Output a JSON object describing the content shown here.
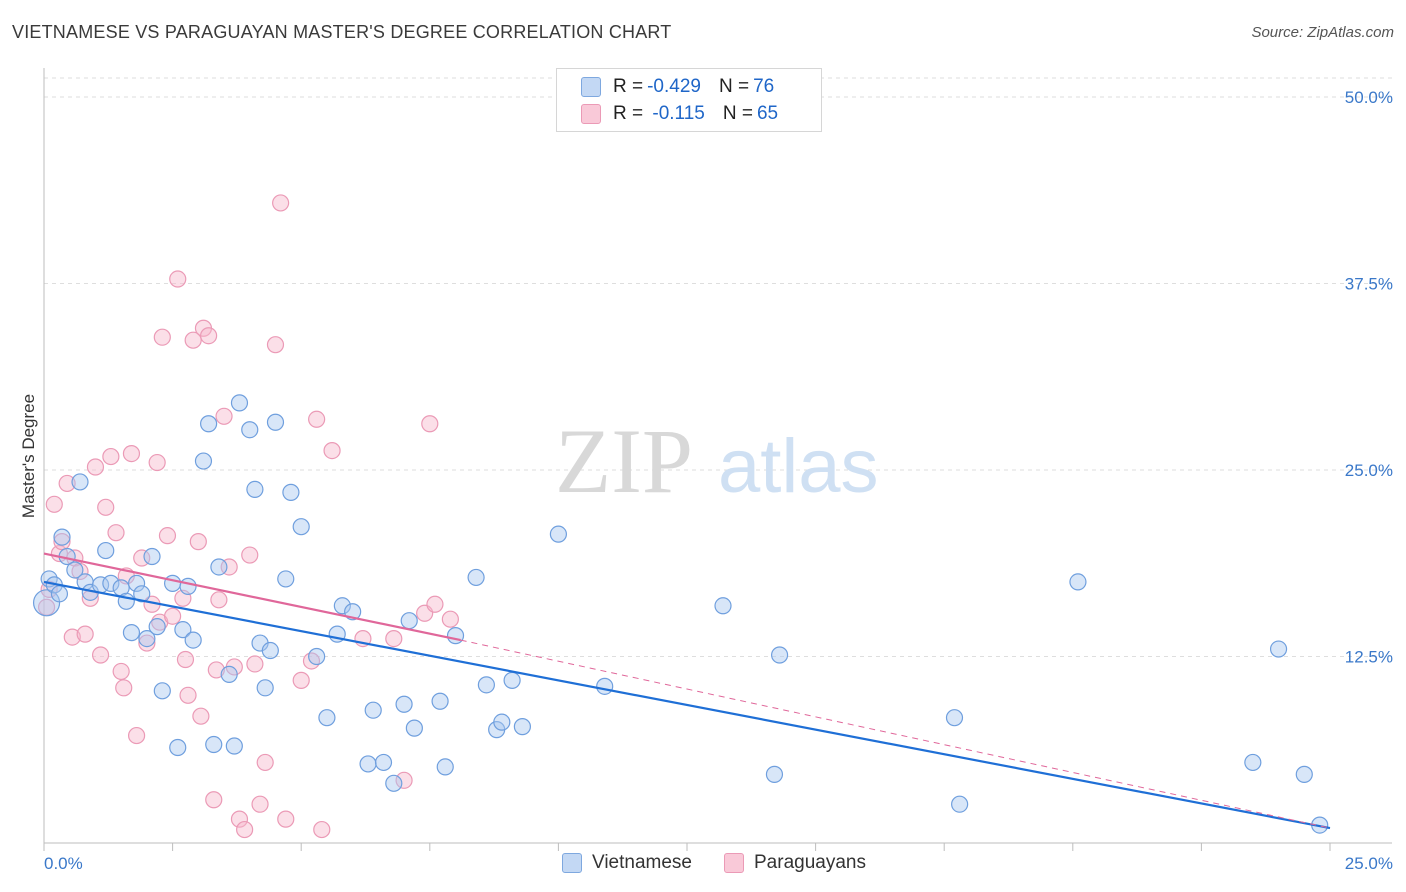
{
  "title": "VIETNAMESE VS PARAGUAYAN MASTER'S DEGREE CORRELATION CHART",
  "source": "Source: ZipAtlas.com",
  "watermark": {
    "zip": "ZIP",
    "atlas": "atlas"
  },
  "colors": {
    "blue": "#1f6fd6",
    "blue_fill": "#a9c8f0",
    "pink": "#e0679a",
    "pink_fill": "#f6b7cc",
    "grid": "#dcdcdc",
    "axis_text": "#3a78c9"
  },
  "legend": {
    "blue": {
      "r_label": "R = ",
      "r_value": "-0.429",
      "n_label": "N = ",
      "n_value": "76"
    },
    "pink": {
      "r_label": "R = ",
      "r_value": " -0.115",
      "n_label": "N = ",
      "n_value": "65"
    }
  },
  "bottom_legend": {
    "blue": "Vietnamese",
    "pink": "Paraguayans"
  },
  "chart_data": {
    "type": "scatter",
    "xlabel": "",
    "ylabel": "Master's Degree",
    "xlim": [
      0,
      25
    ],
    "ylim": [
      0,
      50
    ],
    "x_tick_labels": [
      "0.0%",
      "25.0%"
    ],
    "y_tick_labels": [
      "12.5%",
      "25.0%",
      "37.5%",
      "50.0%"
    ],
    "y_ticks": [
      12.5,
      25.0,
      37.5,
      50.0
    ],
    "series": [
      {
        "name": "Vietnamese",
        "color": "#1f6fd6",
        "trend": {
          "x": [
            0.0,
            25.0
          ],
          "y": [
            17.5,
            1.0
          ],
          "dashed_from": null
        },
        "points": [
          [
            0.05,
            16.1
          ],
          [
            0.1,
            17.7
          ],
          [
            0.2,
            17.3
          ],
          [
            0.3,
            16.7
          ],
          [
            0.35,
            20.5
          ],
          [
            0.45,
            19.2
          ],
          [
            0.6,
            18.3
          ],
          [
            0.7,
            24.2
          ],
          [
            0.8,
            17.5
          ],
          [
            0.9,
            16.8
          ],
          [
            1.1,
            17.3
          ],
          [
            1.2,
            19.6
          ],
          [
            1.3,
            17.4
          ],
          [
            1.5,
            17.1
          ],
          [
            1.6,
            16.2
          ],
          [
            1.7,
            14.1
          ],
          [
            1.8,
            17.4
          ],
          [
            1.9,
            16.7
          ],
          [
            2.0,
            13.7
          ],
          [
            2.1,
            19.2
          ],
          [
            2.2,
            14.5
          ],
          [
            2.3,
            10.2
          ],
          [
            2.5,
            17.4
          ],
          [
            2.6,
            6.4
          ],
          [
            2.7,
            14.3
          ],
          [
            2.8,
            17.2
          ],
          [
            2.9,
            13.6
          ],
          [
            3.1,
            25.6
          ],
          [
            3.2,
            28.1
          ],
          [
            3.3,
            6.6
          ],
          [
            3.4,
            18.5
          ],
          [
            3.6,
            11.3
          ],
          [
            3.7,
            6.5
          ],
          [
            3.8,
            29.5
          ],
          [
            4.0,
            27.7
          ],
          [
            4.1,
            23.7
          ],
          [
            4.2,
            13.4
          ],
          [
            4.3,
            10.4
          ],
          [
            4.4,
            12.9
          ],
          [
            4.5,
            28.2
          ],
          [
            4.7,
            17.7
          ],
          [
            4.8,
            23.5
          ],
          [
            5.0,
            21.2
          ],
          [
            5.3,
            12.5
          ],
          [
            5.5,
            8.4
          ],
          [
            5.7,
            14.0
          ],
          [
            5.8,
            15.9
          ],
          [
            6.0,
            15.5
          ],
          [
            6.3,
            5.3
          ],
          [
            6.4,
            8.9
          ],
          [
            6.6,
            5.4
          ],
          [
            6.8,
            4.0
          ],
          [
            7.0,
            9.3
          ],
          [
            7.1,
            14.9
          ],
          [
            7.2,
            7.7
          ],
          [
            7.7,
            9.5
          ],
          [
            7.8,
            5.1
          ],
          [
            8.0,
            13.9
          ],
          [
            8.4,
            17.8
          ],
          [
            8.6,
            10.6
          ],
          [
            8.8,
            7.6
          ],
          [
            8.9,
            8.1
          ],
          [
            9.1,
            10.9
          ],
          [
            9.3,
            7.8
          ],
          [
            10.0,
            20.7
          ],
          [
            10.9,
            10.5
          ],
          [
            13.2,
            15.9
          ],
          [
            14.2,
            4.6
          ],
          [
            14.3,
            12.6
          ],
          [
            17.7,
            8.4
          ],
          [
            17.8,
            2.6
          ],
          [
            20.1,
            17.5
          ],
          [
            23.5,
            5.4
          ],
          [
            24.0,
            13.0
          ],
          [
            24.5,
            4.6
          ],
          [
            24.8,
            1.2
          ]
        ]
      },
      {
        "name": "Paraguayans",
        "color": "#e0679a",
        "trend": {
          "x": [
            0.0,
            8.1,
            25.0
          ],
          "y": [
            19.4,
            13.6,
            1.0
          ],
          "dashed_from": 8.1
        },
        "points": [
          [
            0.05,
            15.8
          ],
          [
            0.1,
            17.0
          ],
          [
            0.2,
            22.7
          ],
          [
            0.3,
            19.4
          ],
          [
            0.35,
            20.2
          ],
          [
            0.45,
            24.1
          ],
          [
            0.55,
            13.8
          ],
          [
            0.6,
            19.1
          ],
          [
            0.7,
            18.2
          ],
          [
            0.8,
            14.0
          ],
          [
            0.9,
            16.4
          ],
          [
            1.0,
            25.2
          ],
          [
            1.1,
            12.6
          ],
          [
            1.2,
            22.5
          ],
          [
            1.3,
            25.9
          ],
          [
            1.4,
            20.8
          ],
          [
            1.5,
            11.5
          ],
          [
            1.55,
            10.4
          ],
          [
            1.6,
            17.9
          ],
          [
            1.7,
            26.1
          ],
          [
            1.8,
            7.2
          ],
          [
            1.9,
            19.1
          ],
          [
            2.0,
            13.4
          ],
          [
            2.1,
            16.0
          ],
          [
            2.2,
            25.5
          ],
          [
            2.25,
            14.8
          ],
          [
            2.3,
            33.9
          ],
          [
            2.4,
            20.6
          ],
          [
            2.5,
            15.2
          ],
          [
            2.6,
            37.8
          ],
          [
            2.7,
            16.4
          ],
          [
            2.75,
            12.3
          ],
          [
            2.8,
            9.9
          ],
          [
            2.9,
            33.7
          ],
          [
            3.0,
            20.2
          ],
          [
            3.05,
            8.5
          ],
          [
            3.1,
            34.5
          ],
          [
            3.2,
            34.0
          ],
          [
            3.3,
            2.9
          ],
          [
            3.35,
            11.6
          ],
          [
            3.4,
            16.3
          ],
          [
            3.5,
            28.6
          ],
          [
            3.6,
            18.5
          ],
          [
            3.7,
            11.8
          ],
          [
            3.8,
            1.6
          ],
          [
            3.9,
            0.9
          ],
          [
            4.0,
            19.3
          ],
          [
            4.1,
            12.0
          ],
          [
            4.2,
            2.6
          ],
          [
            4.3,
            5.4
          ],
          [
            4.5,
            33.4
          ],
          [
            4.6,
            42.9
          ],
          [
            4.7,
            1.6
          ],
          [
            5.0,
            10.9
          ],
          [
            5.2,
            12.2
          ],
          [
            5.3,
            28.4
          ],
          [
            5.4,
            0.9
          ],
          [
            5.6,
            26.3
          ],
          [
            6.2,
            13.7
          ],
          [
            6.8,
            13.7
          ],
          [
            7.0,
            4.2
          ],
          [
            7.4,
            15.4
          ],
          [
            7.5,
            28.1
          ],
          [
            7.6,
            16.0
          ],
          [
            7.9,
            15.0
          ]
        ]
      }
    ]
  }
}
